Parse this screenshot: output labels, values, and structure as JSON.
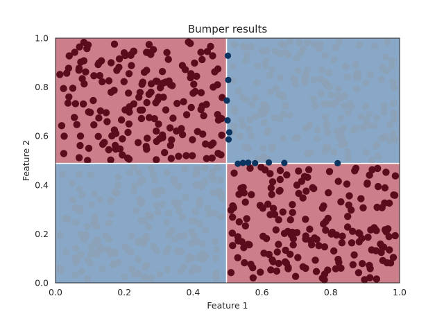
{
  "chart_data": {
    "type": "scatter",
    "title": "Bumper results",
    "xlabel": "Feature 1",
    "ylabel": "Feature 2",
    "xlim": [
      0.0,
      1.0
    ],
    "ylim": [
      0.0,
      1.0
    ],
    "x_ticks": [
      "0.0",
      "0.2",
      "0.4",
      "0.6",
      "0.8",
      "1.0"
    ],
    "y_ticks": [
      "0.0",
      "0.2",
      "0.4",
      "0.6",
      "0.8",
      "1.0"
    ],
    "grid": false,
    "legend": "none",
    "decision_boundary": {
      "x_split": 0.497,
      "y_split": 0.488
    },
    "regions": [
      {
        "x": [
          0.0,
          0.497
        ],
        "y": [
          0.488,
          1.0
        ],
        "class": "red"
      },
      {
        "x": [
          0.497,
          1.0
        ],
        "y": [
          0.0,
          0.488
        ],
        "class": "red"
      },
      {
        "x": [
          0.497,
          1.0
        ],
        "y": [
          0.488,
          1.0
        ],
        "class": "blue"
      },
      {
        "x": [
          0.0,
          0.497
        ],
        "y": [
          0.0,
          0.488
        ],
        "class": "blue"
      }
    ],
    "colors": {
      "red_region": "#ca7f8a",
      "blue_region": "#89a8c8",
      "red_points": "#5a0c1d",
      "blue_points": "#8da1b6",
      "boundary_points": "#0b3460",
      "boundary_line": "#ffffff",
      "axes": "#262626"
    },
    "series_summary": {
      "points_per_region": 190
    },
    "boundary_points": [
      {
        "x": 0.5,
        "y": 0.664
      },
      {
        "x": 0.502,
        "y": 0.829
      },
      {
        "x": 0.501,
        "y": 0.928
      },
      {
        "x": 0.505,
        "y": 0.615
      },
      {
        "x": 0.498,
        "y": 0.745
      },
      {
        "x": 0.503,
        "y": 0.586
      },
      {
        "x": 0.53,
        "y": 0.487
      },
      {
        "x": 0.56,
        "y": 0.491
      },
      {
        "x": 0.58,
        "y": 0.489
      },
      {
        "x": 0.62,
        "y": 0.492
      },
      {
        "x": 0.665,
        "y": 0.49
      },
      {
        "x": 0.82,
        "y": 0.489
      },
      {
        "x": 0.545,
        "y": 0.49
      }
    ]
  }
}
